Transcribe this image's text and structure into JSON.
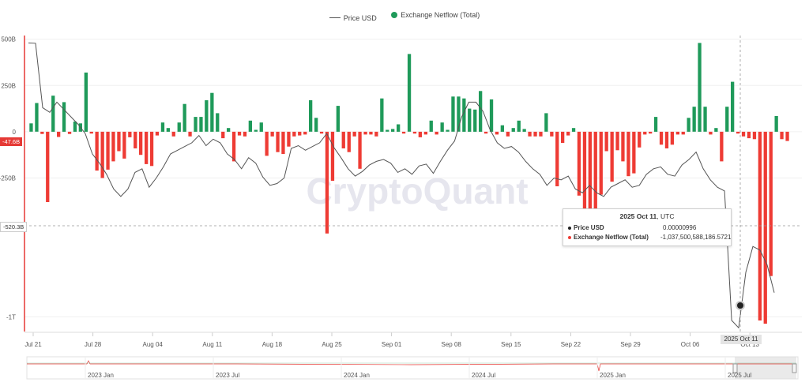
{
  "legend": {
    "price_label": "Price USD",
    "netflow_label": "Exchange Netflow (Total)",
    "price_color": "#555555",
    "netflow_pos_color": "#1f9a5a",
    "netflow_neg_color": "#ee3b34"
  },
  "watermark": "CryptoQuant",
  "tooltip": {
    "date_bold": "2025 Oct 11",
    "date_suffix": ", UTC",
    "price_label": "Price USD",
    "price_value": "0.00000996",
    "netflow_label": "Exchange Netflow (Total)",
    "netflow_value": "-1,037,500,588,186.5721"
  },
  "axis_labels": {
    "current_netflow": "-47.6B",
    "crosshair_y": "-520.3B",
    "crosshair_x": "2025 Oct 11"
  },
  "navigator_labels": [
    "2023 Jan",
    "2023 Jul",
    "2024 Jan",
    "2024 Jul",
    "2025 Jan",
    "2025 Jul"
  ],
  "chart_data": {
    "type": "bar",
    "x_ticks": [
      "Jul 21",
      "Jul 28",
      "Aug 04",
      "Aug 11",
      "Aug 18",
      "Aug 25",
      "Sep 01",
      "Sep 08",
      "Sep 15",
      "Sep 22",
      "Sep 29",
      "Oct 06",
      "Oct 13"
    ],
    "y_ticks": [
      "500B",
      "250B",
      "0",
      "-250B",
      "-1T"
    ],
    "y_tick_values": [
      500,
      250,
      0,
      -250,
      -1000
    ],
    "ylim": [
      -1080,
      520
    ],
    "series": [
      {
        "name": "Exchange Netflow (Total)",
        "type": "bar",
        "values": [
          45,
          155,
          -12,
          -380,
          195,
          -28,
          160,
          -12,
          55,
          45,
          320,
          -10,
          -210,
          -250,
          -205,
          -160,
          -105,
          -145,
          -30,
          -90,
          -125,
          -175,
          -185,
          -20,
          50,
          20,
          -25,
          50,
          150,
          -25,
          80,
          80,
          170,
          210,
          100,
          -35,
          20,
          -160,
          -20,
          -25,
          60,
          10,
          50,
          -130,
          -25,
          -110,
          -120,
          -80,
          -25,
          -20,
          -15,
          170,
          75,
          -10,
          -550,
          -265,
          140,
          -90,
          -110,
          -25,
          -200,
          -15,
          -15,
          -25,
          180,
          10,
          15,
          40,
          -10,
          420,
          -10,
          -30,
          -15,
          60,
          -15,
          50,
          10,
          190,
          190,
          180,
          125,
          120,
          220,
          -10,
          175,
          -15,
          35,
          -25,
          20,
          60,
          15,
          -25,
          -25,
          -25,
          100,
          -25,
          -295,
          -60,
          -20,
          20,
          -345,
          -440,
          -575,
          -450,
          -340,
          -105,
          -270,
          -100,
          -160,
          -240,
          -225,
          -85,
          -15,
          -10,
          80,
          -70,
          -90,
          -70,
          -15,
          -15,
          75,
          135,
          480,
          135,
          -15,
          20,
          -160,
          135,
          270,
          -10,
          -25,
          -35,
          -40,
          -1020,
          -1037.5,
          -780,
          85,
          -40,
          -50
        ],
        "_comment_ignore": ""
      },
      {
        "name": "Price USD",
        "type": "line",
        "values": [
          480,
          478,
          130,
          105,
          160,
          120,
          80,
          40,
          -10,
          -120,
          -170,
          -230,
          -310,
          -350,
          -310,
          -220,
          -200,
          -300,
          -250,
          -190,
          -120,
          -100,
          -80,
          -60,
          -20,
          -75,
          -40,
          -60,
          -120,
          -150,
          -200,
          -140,
          -170,
          -245,
          -290,
          -280,
          -250,
          -90,
          -75,
          -100,
          -80,
          -60,
          -10,
          -85,
          -140,
          -200,
          -240,
          -215,
          -180,
          -160,
          -150,
          -170,
          -220,
          -200,
          -230,
          -185,
          -175,
          -225,
          -160,
          -100,
          -50,
          80,
          160,
          160,
          110,
          10,
          -60,
          -90,
          -80,
          -110,
          -160,
          -200,
          -230,
          -290,
          -250,
          -260,
          -240,
          -310,
          -330,
          -290,
          -330,
          -350,
          -300,
          -280,
          -260,
          -300,
          -290,
          -230,
          -200,
          -190,
          -230,
          -240,
          -180,
          -150,
          -110,
          -200,
          -260,
          -300,
          -320,
          -1020,
          -1060,
          -760,
          -620,
          -640,
          -720,
          -870
        ]
      }
    ]
  }
}
